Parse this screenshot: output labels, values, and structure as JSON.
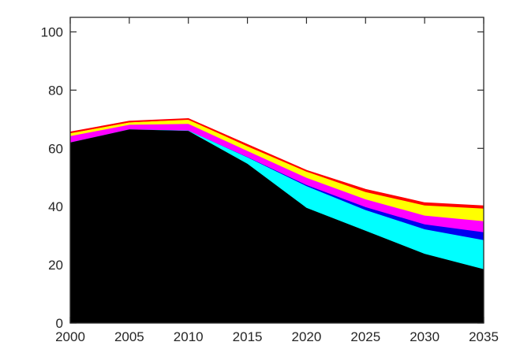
{
  "figure": {
    "background": "#ffffff",
    "frame_color": "#2a2a2a",
    "tick_color": "#2a2a2a",
    "tick_label_color": "#262626",
    "tick_font_size": 17
  },
  "chart_data": {
    "type": "area",
    "stacked": true,
    "title": "",
    "xlabel": "",
    "ylabel": "",
    "grid": false,
    "legend": "none",
    "xlim": [
      2000,
      2035
    ],
    "ylim": [
      0,
      105
    ],
    "xticks": [
      2000,
      2005,
      2010,
      2015,
      2020,
      2025,
      2030,
      2035
    ],
    "xtick_labels": [
      "2000",
      "2005",
      "2010",
      "2015",
      "2020",
      "2025",
      "2030",
      "2035"
    ],
    "yticks": [
      0,
      20,
      40,
      60,
      80,
      100
    ],
    "ytick_labels": [
      "0",
      "20",
      "40",
      "60",
      "80",
      "100"
    ],
    "x": [
      2000,
      2005,
      2010,
      2015,
      2020,
      2025,
      2030,
      2035
    ],
    "series": [
      {
        "name": "layer-black",
        "color": "#000000",
        "values": [
          62.0,
          66.5,
          66.0,
          54.7,
          39.6,
          31.7,
          23.8,
          18.5
        ]
      },
      {
        "name": "layer-cyan",
        "color": "#00ffff",
        "values": [
          0.0,
          0.0,
          0.1,
          2.2,
          7.4,
          7.1,
          8.4,
          10.0
        ]
      },
      {
        "name": "layer-blue",
        "color": "#0000f0",
        "values": [
          0.0,
          0.0,
          0.0,
          0.1,
          0.4,
          1.0,
          1.7,
          2.7
        ]
      },
      {
        "name": "layer-magenta",
        "color": "#ff00ff",
        "values": [
          2.2,
          1.6,
          2.3,
          2.1,
          2.5,
          2.7,
          3.0,
          3.8
        ]
      },
      {
        "name": "layer-yellow",
        "color": "#ffff00",
        "values": [
          1.0,
          0.8,
          1.5,
          1.6,
          2.1,
          2.5,
          3.5,
          4.3
        ]
      },
      {
        "name": "layer-red",
        "color": "#ff0000",
        "values": [
          0.3,
          0.3,
          0.2,
          0.5,
          0.3,
          0.8,
          0.8,
          0.8
        ]
      }
    ],
    "totals": [
      65.5,
      69.2,
      70.1,
      61.2,
      52.3,
      45.8,
      41.2,
      40.1
    ]
  }
}
